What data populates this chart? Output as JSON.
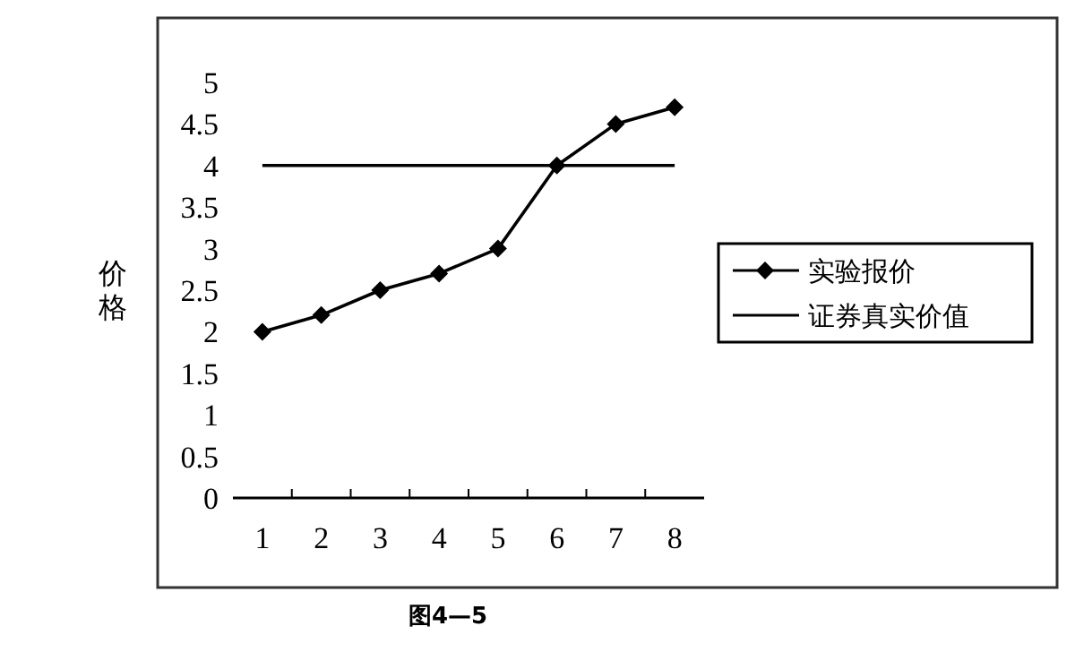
{
  "chart_data": {
    "type": "line",
    "ylabel": "价格",
    "categories": [
      "1",
      "2",
      "3",
      "4",
      "5",
      "6",
      "7",
      "8"
    ],
    "series": [
      {
        "name": "实验报价",
        "color": "#000000",
        "values": [
          2,
          2.2,
          2.5,
          2.7,
          3,
          4,
          4.5,
          4.7
        ],
        "marker": "diamond"
      },
      {
        "name": "证券真实价值",
        "color": "#000000",
        "values": [
          4,
          4,
          4,
          4,
          4,
          4,
          4,
          4
        ],
        "marker": "none"
      }
    ],
    "ylim": [
      0,
      5
    ],
    "yticks": [
      0,
      0.5,
      1,
      1.5,
      2,
      2.5,
      3,
      3.5,
      4,
      4.5,
      5
    ],
    "grid": false,
    "legend": "right",
    "line_style": "solid",
    "annotations": [
      "图4—5"
    ]
  }
}
